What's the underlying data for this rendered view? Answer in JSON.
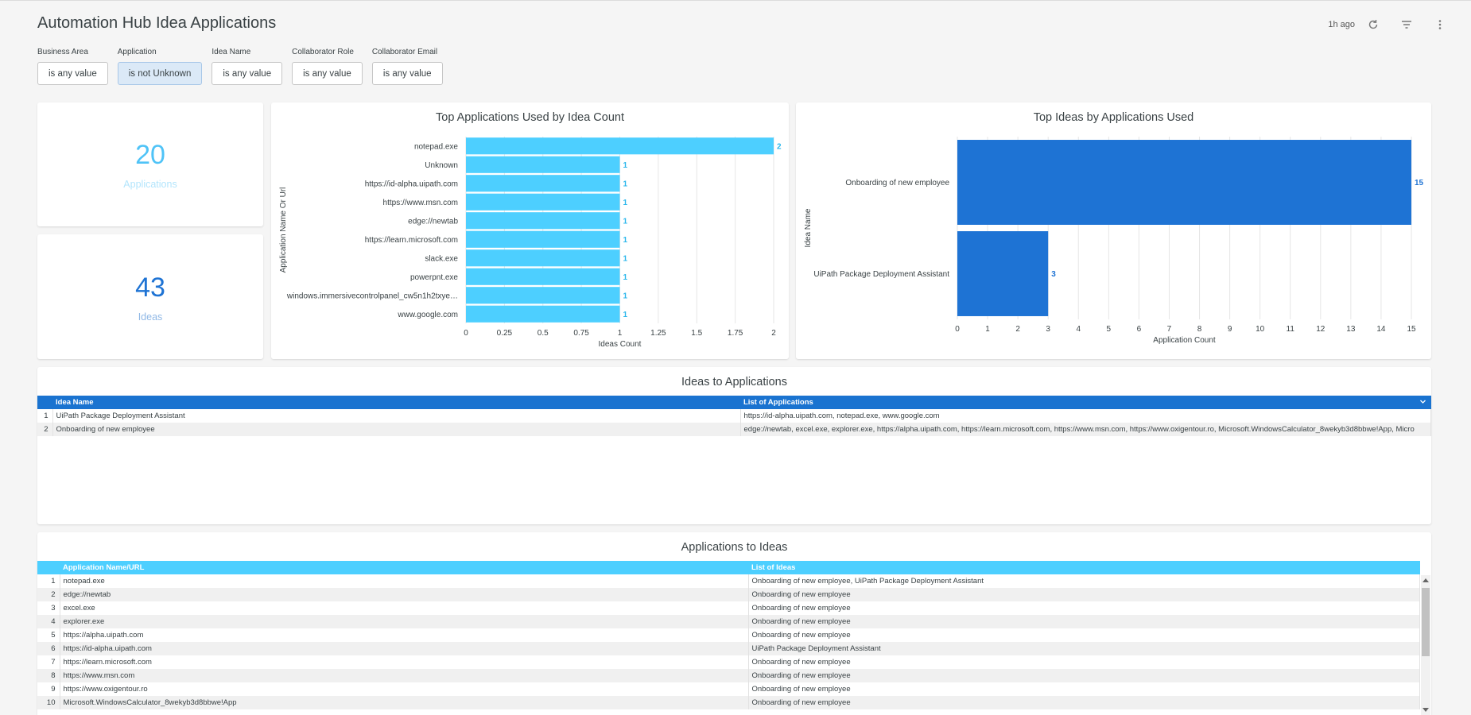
{
  "dashboard": {
    "title": "Automation Hub Idea Applications",
    "updated": "1h ago"
  },
  "filters": [
    {
      "label": "Business Area",
      "value": "is any value",
      "active": false
    },
    {
      "label": "Application",
      "value": "is not Unknown",
      "active": true
    },
    {
      "label": "Idea Name",
      "value": "is any value",
      "active": false
    },
    {
      "label": "Collaborator Role",
      "value": "is any value",
      "active": false
    },
    {
      "label": "Collaborator Email",
      "value": "is any value",
      "active": false
    }
  ],
  "kpis": {
    "applications": {
      "value": "20",
      "label": "Applications",
      "color": "#4fc3f7"
    },
    "ideas": {
      "value": "43",
      "label": "Ideas",
      "color": "#1e73d4"
    }
  },
  "chart_data": [
    {
      "type": "bar",
      "orientation": "horizontal",
      "title": "Top Applications Used by Idea Count",
      "xlabel": "Ideas Count",
      "ylabel": "Application Name Or Url",
      "categories": [
        "notepad.exe",
        "Unknown",
        "https://id-alpha.uipath.com",
        "https://www.msn.com",
        "edge://newtab",
        "https://learn.microsoft.com",
        "slack.exe",
        "powerpnt.exe",
        "windows.immersivecontrolpanel_cw5n1h2txye…",
        "www.google.com"
      ],
      "values": [
        2,
        1,
        1,
        1,
        1,
        1,
        1,
        1,
        1,
        1
      ],
      "xlim": [
        0,
        2
      ],
      "xticks": [
        "0",
        "0.25",
        "0.5",
        "0.75",
        "1",
        "1.25",
        "1.5",
        "1.75",
        "2"
      ],
      "color": "#4dcfff",
      "grid": true
    },
    {
      "type": "bar",
      "orientation": "horizontal",
      "title": "Top Ideas by Applications Used",
      "xlabel": "Application Count",
      "ylabel": "Idea Name",
      "categories": [
        "Onboarding of new employee",
        "UiPath Package Deployment Assistant"
      ],
      "values": [
        15,
        3
      ],
      "xlim": [
        0,
        15
      ],
      "xticks": [
        "0",
        "1",
        "2",
        "3",
        "4",
        "5",
        "6",
        "7",
        "8",
        "9",
        "10",
        "11",
        "12",
        "13",
        "14",
        "15"
      ],
      "color": "#1e73d4",
      "grid": true
    }
  ],
  "ideas_table": {
    "title": "Ideas to Applications",
    "header_color": "#1a73d0",
    "columns": [
      "Idea Name",
      "List of Applications"
    ],
    "rows": [
      [
        "1",
        "UiPath Package Deployment Assistant",
        "https://id-alpha.uipath.com, notepad.exe, www.google.com"
      ],
      [
        "2",
        "Onboarding of new employee",
        "edge://newtab, excel.exe, explorer.exe, https://alpha.uipath.com, https://learn.microsoft.com, https://www.msn.com, https://www.oxigentour.ro, Microsoft.WindowsCalculator_8wekyb3d8bbwe!App, Micro"
      ]
    ]
  },
  "apps_table": {
    "title": "Applications to Ideas",
    "header_color": "#4dcfff",
    "columns": [
      "Application Name/URL",
      "List of Ideas"
    ],
    "rows": [
      [
        "1",
        "notepad.exe",
        "Onboarding of new employee, UiPath Package Deployment Assistant"
      ],
      [
        "2",
        "edge://newtab",
        "Onboarding of new employee"
      ],
      [
        "3",
        "excel.exe",
        "Onboarding of new employee"
      ],
      [
        "4",
        "explorer.exe",
        "Onboarding of new employee"
      ],
      [
        "5",
        "https://alpha.uipath.com",
        "Onboarding of new employee"
      ],
      [
        "6",
        "https://id-alpha.uipath.com",
        "UiPath Package Deployment Assistant"
      ],
      [
        "7",
        "https://learn.microsoft.com",
        "Onboarding of new employee"
      ],
      [
        "8",
        "https://www.msn.com",
        "Onboarding of new employee"
      ],
      [
        "9",
        "https://www.oxigentour.ro",
        "Onboarding of new employee"
      ],
      [
        "10",
        "Microsoft.WindowsCalculator_8wekyb3d8bbwe!App",
        "Onboarding of new employee"
      ]
    ]
  }
}
